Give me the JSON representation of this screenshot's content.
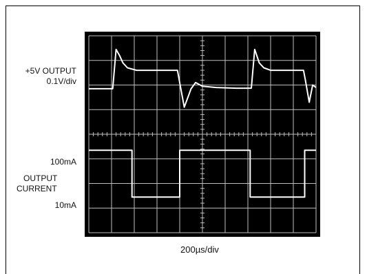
{
  "chart_data": {
    "type": "line",
    "xlabel": "200µs/div",
    "grid": true,
    "grid_divisions": {
      "x": 10,
      "y": 8
    },
    "colors": {
      "screen": "#000000",
      "trace": "#ffffff",
      "grid": "#bfbfbf"
    },
    "left_labels": {
      "voltage_line1": "+5V OUTPUT",
      "voltage_line2": "0.1V/div",
      "current_high": "100mA",
      "current_name_line1": "OUTPUT",
      "current_name_line2": "CURRENT",
      "current_low": "10mA"
    },
    "x_range_divs": [
      0,
      10
    ],
    "y_range_divs": [
      0,
      8
    ],
    "series": [
      {
        "x": [
          0,
          0.35,
          0.38,
          0.9,
          1.05,
          1.2,
          1.35,
          1.5,
          1.7,
          2.1,
          2.5,
          3.1,
          3.65,
          3.9,
          3.98,
          4.2,
          4.5,
          4.7,
          5.0,
          5.6,
          6.5,
          7.05,
          7.15,
          7.3,
          7.5,
          7.7,
          8.0,
          8.5,
          9.0,
          9.45,
          9.53,
          9.7,
          9.85,
          10.0
        ],
        "y": [
          5.85,
          5.85,
          5.85,
          5.85,
          5.85,
          7.45,
          7.2,
          6.9,
          6.7,
          6.6,
          6.6,
          6.6,
          6.6,
          6.6,
          6.2,
          5.1,
          5.85,
          6.1,
          5.95,
          5.9,
          5.87,
          5.87,
          5.87,
          7.45,
          6.9,
          6.7,
          6.6,
          6.6,
          6.6,
          6.6,
          6.2,
          5.3,
          6.0,
          5.9
        ]
      },
      {
        "x": [
          0,
          0.35,
          0.35,
          0.6,
          1.8,
          1.9,
          1.9,
          3.95,
          4.0,
          4.0,
          7.0,
          7.1,
          7.1,
          9.45,
          9.5,
          9.5,
          10.0
        ],
        "y": [
          3.35,
          3.35,
          3.35,
          3.35,
          3.35,
          3.35,
          1.45,
          1.45,
          1.45,
          3.35,
          3.35,
          3.35,
          1.45,
          1.45,
          1.45,
          3.35,
          3.35
        ]
      }
    ]
  }
}
